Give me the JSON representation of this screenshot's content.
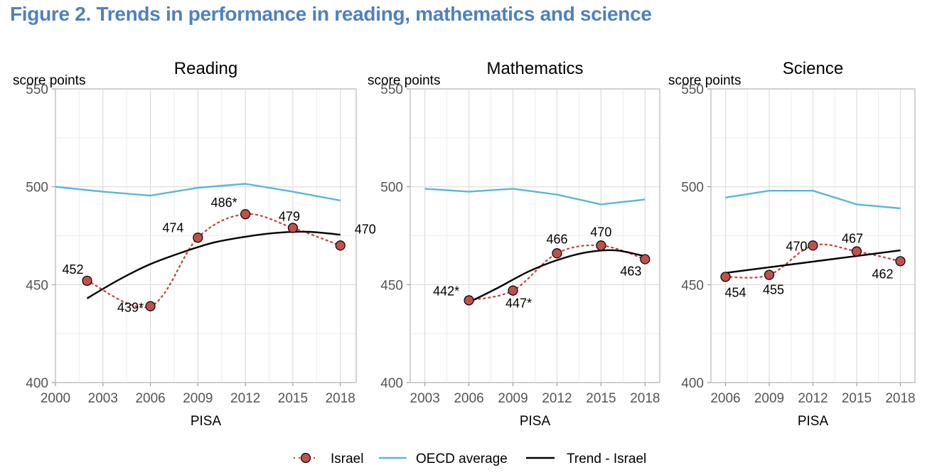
{
  "title": "Figure 2. Trends in performance in reading, mathematics and science",
  "legend": {
    "israel": "Israel",
    "oecd": "OECD average",
    "trend": "Trend - Israel"
  },
  "colors": {
    "israel_marker": "#c0504d",
    "israel_dots": "#c0504d",
    "oecd_line": "#5bb8d4",
    "trend_line": "#000000",
    "title": "#4f81bd"
  },
  "chart_data": [
    {
      "type": "line",
      "title": "Reading",
      "ylabel": "score points",
      "xlabel": "PISA",
      "ylim": [
        400,
        550
      ],
      "yticks": [
        400,
        450,
        500,
        550
      ],
      "xticks": [
        2000,
        2003,
        2006,
        2009,
        2012,
        2015,
        2018
      ],
      "grid": true,
      "series": [
        {
          "name": "Israel",
          "x": [
            2002,
            2006,
            2009,
            2012,
            2015,
            2018
          ],
          "values": [
            452,
            439,
            474,
            486,
            479,
            470
          ],
          "labels": [
            "452",
            "439*",
            "474",
            "486*",
            "479",
            "470"
          ]
        },
        {
          "name": "OECD average",
          "x": [
            2000,
            2003,
            2006,
            2009,
            2012,
            2015,
            2018
          ],
          "values": [
            500,
            497.5,
            495.5,
            499.5,
            501.5,
            497.5,
            493
          ]
        },
        {
          "name": "Trend - Israel",
          "x": [
            2002,
            2004,
            2006,
            2008,
            2010,
            2012,
            2014,
            2016,
            2018
          ],
          "values": [
            443,
            452.5,
            460.5,
            466.5,
            471.5,
            474.5,
            476.5,
            477,
            475.5
          ]
        }
      ]
    },
    {
      "type": "line",
      "title": "Mathematics",
      "ylabel": "score points",
      "xlabel": "PISA",
      "ylim": [
        400,
        550
      ],
      "yticks": [
        400,
        450,
        500,
        550
      ],
      "xticks": [
        2003,
        2006,
        2009,
        2012,
        2015,
        2018
      ],
      "grid": true,
      "series": [
        {
          "name": "Israel",
          "x": [
            2006,
            2009,
            2012,
            2015,
            2018
          ],
          "values": [
            442,
            447,
            466,
            470,
            463
          ],
          "labels": [
            "442*",
            "447*",
            "466",
            "470",
            "463"
          ]
        },
        {
          "name": "OECD average",
          "x": [
            2003,
            2006,
            2009,
            2012,
            2015,
            2018
          ],
          "values": [
            499,
            497.5,
            499,
            496,
            491,
            493.5
          ]
        },
        {
          "name": "Trend - Israel",
          "x": [
            2006,
            2008,
            2010,
            2012,
            2014,
            2016,
            2018
          ],
          "values": [
            441,
            448.5,
            456.5,
            462.5,
            466.5,
            467.5,
            464.5
          ]
        }
      ]
    },
    {
      "type": "line",
      "title": "Science",
      "ylabel": "score points",
      "xlabel": "PISA",
      "ylim": [
        400,
        550
      ],
      "yticks": [
        400,
        450,
        500,
        550
      ],
      "xticks": [
        2006,
        2009,
        2012,
        2015,
        2018
      ],
      "grid": true,
      "series": [
        {
          "name": "Israel",
          "x": [
            2006,
            2009,
            2012,
            2015,
            2018
          ],
          "values": [
            454,
            455,
            470,
            467,
            462
          ],
          "labels": [
            "454",
            "455",
            "470",
            "467",
            "462"
          ]
        },
        {
          "name": "OECD average",
          "x": [
            2006,
            2009,
            2012,
            2015,
            2018
          ],
          "values": [
            494.5,
            498,
            498,
            491,
            489
          ]
        },
        {
          "name": "Trend - Israel",
          "x": [
            2006,
            2018
          ],
          "values": [
            456,
            467.5
          ]
        }
      ]
    }
  ]
}
